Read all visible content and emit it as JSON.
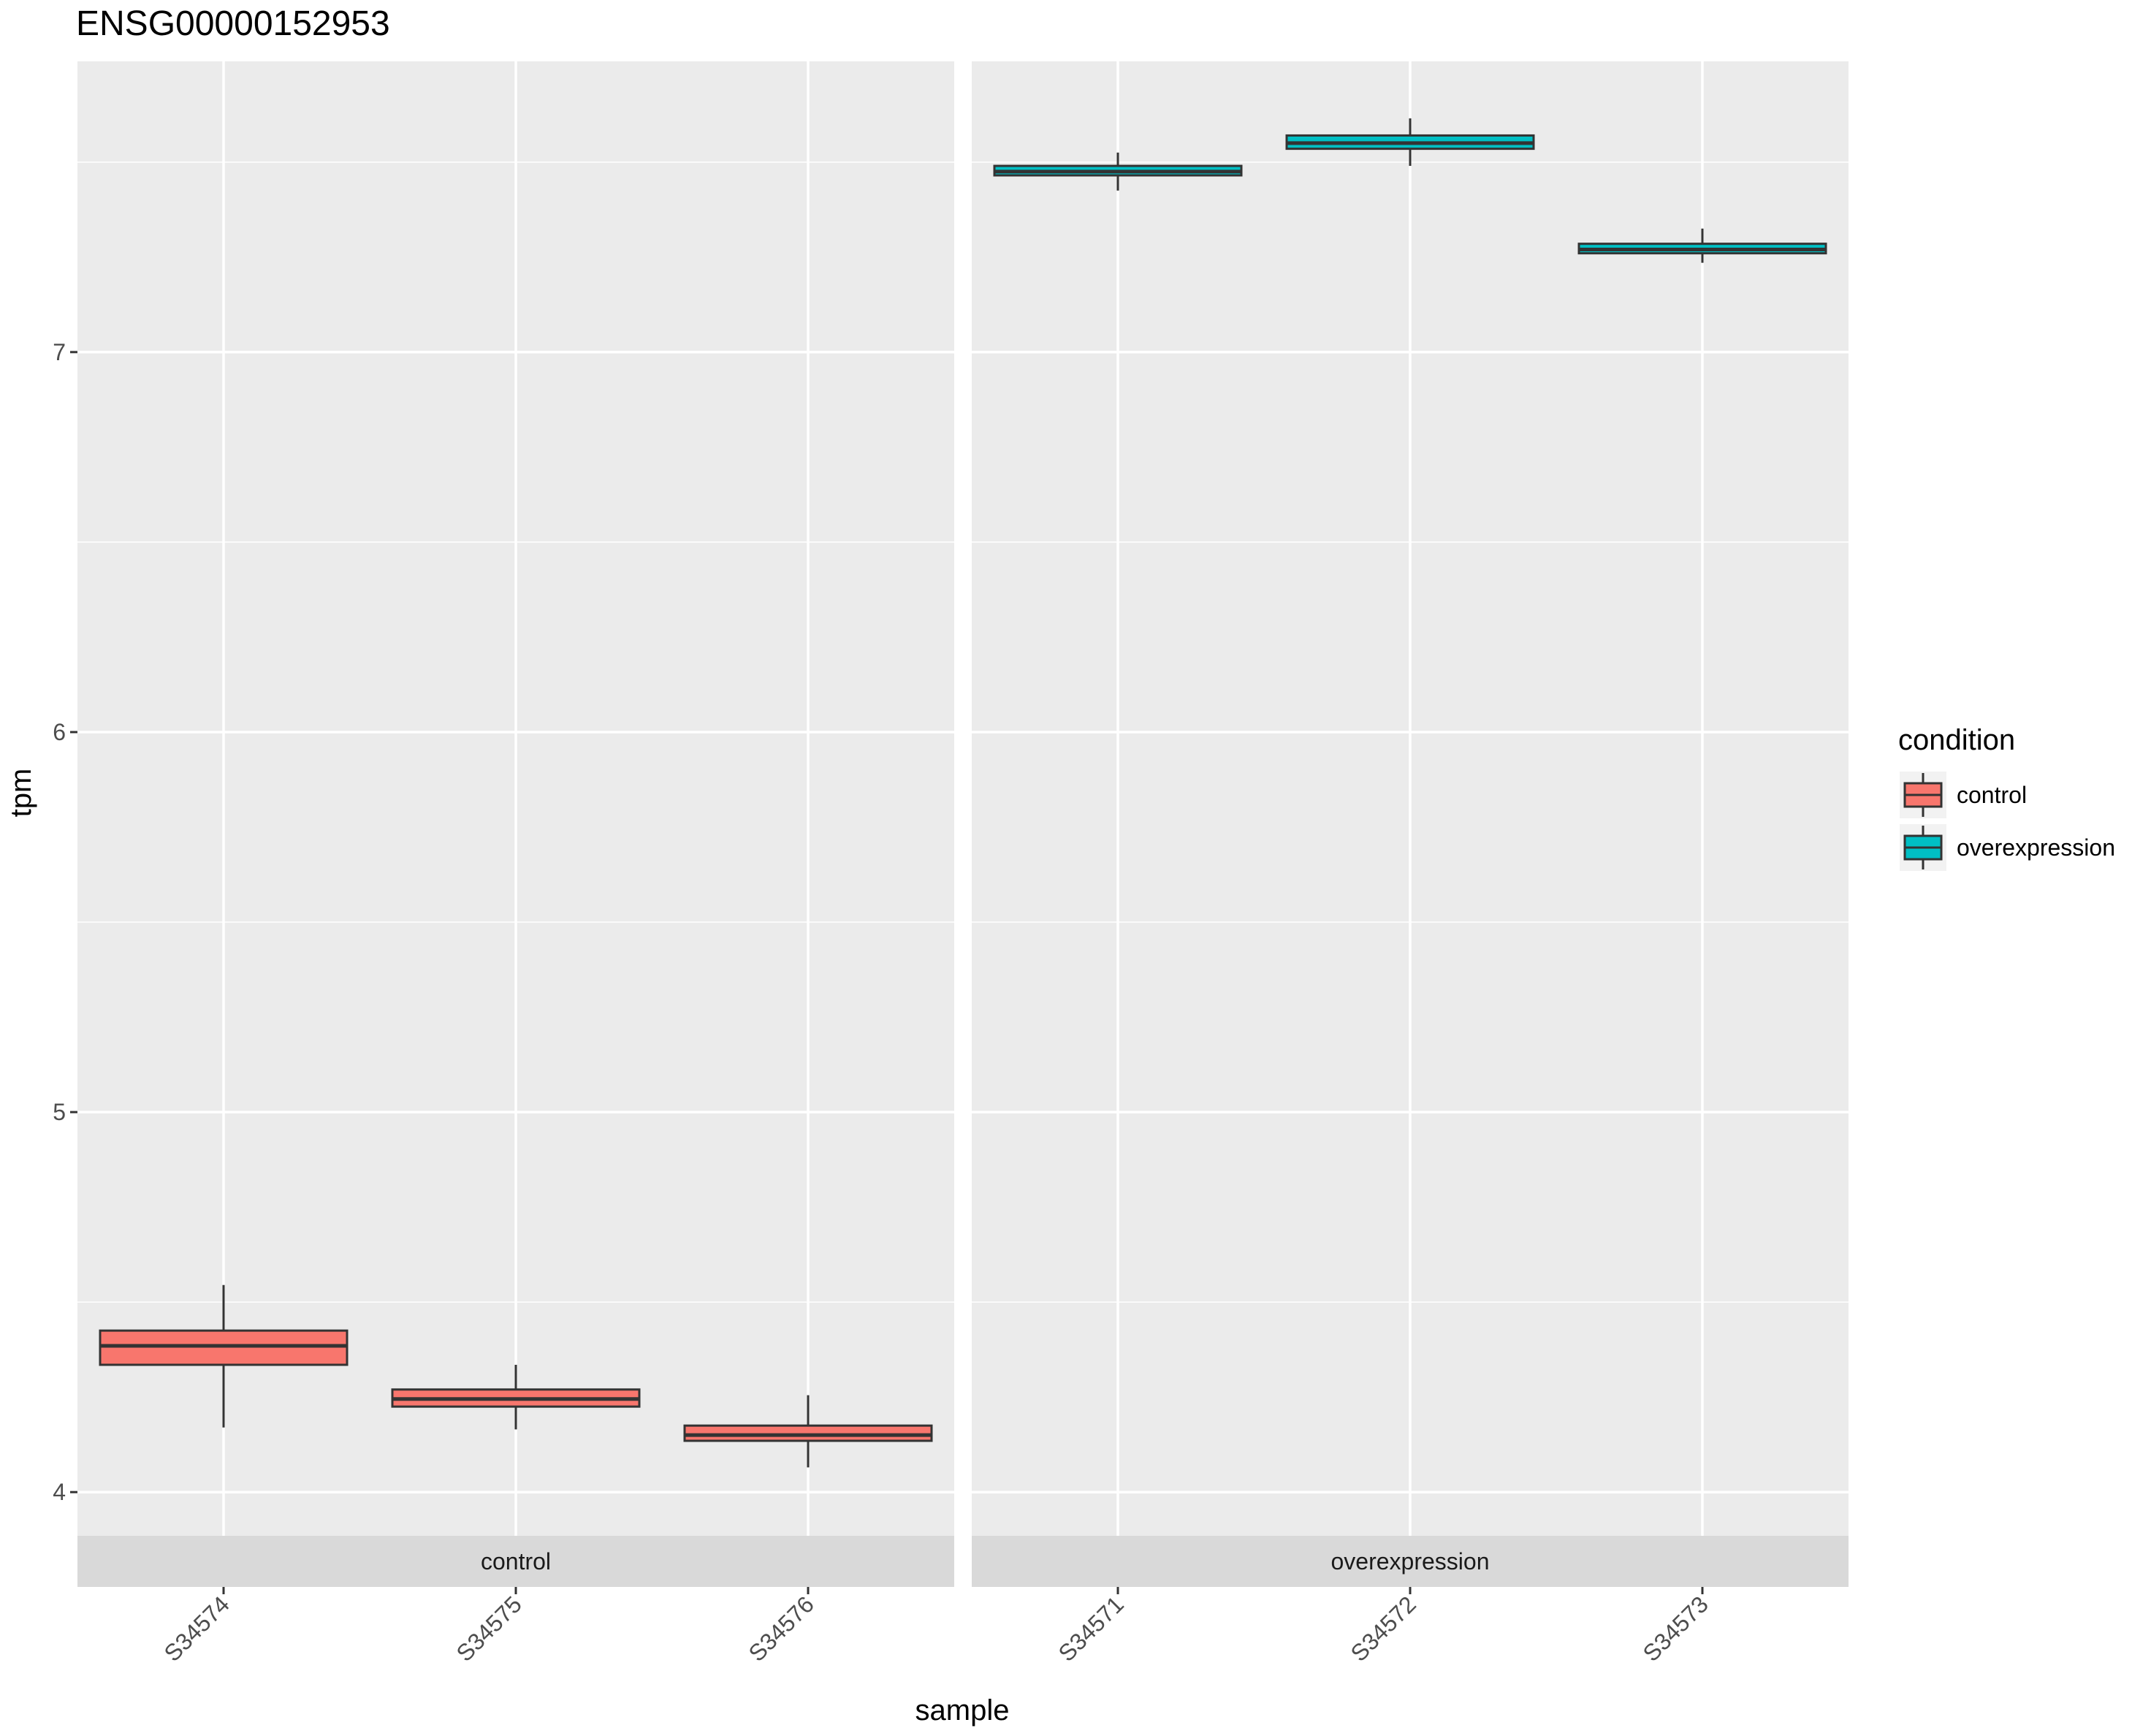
{
  "chart_data": {
    "type": "boxplot",
    "title": "ENSG00000152953",
    "xlabel": "sample",
    "ylabel": "tpm",
    "ylim": [
      3.885,
      7.765
    ],
    "y_ticks": [
      4,
      5,
      6,
      7
    ],
    "y_tick_labels": [
      "4",
      "5",
      "6",
      "7"
    ],
    "grid": true,
    "facet_by": "condition",
    "legend": {
      "title": "condition",
      "placement": "right",
      "entries": [
        {
          "label": "control",
          "color": "#F8766D"
        },
        {
          "label": "overexpression",
          "color": "#00BFC4"
        }
      ]
    },
    "panels": [
      {
        "strip_label": "control",
        "condition": "control",
        "categories": [
          "S34574",
          "S34575",
          "S34576"
        ],
        "boxes": [
          {
            "sample": "S34574",
            "whisker_low": 4.17,
            "q1": 4.335,
            "median": 4.385,
            "q3": 4.425,
            "whisker_high": 4.545
          },
          {
            "sample": "S34575",
            "whisker_low": 4.165,
            "q1": 4.225,
            "median": 4.245,
            "q3": 4.27,
            "whisker_high": 4.335
          },
          {
            "sample": "S34576",
            "whisker_low": 4.065,
            "q1": 4.135,
            "median": 4.15,
            "q3": 4.175,
            "whisker_high": 4.255
          }
        ]
      },
      {
        "strip_label": "overexpression",
        "condition": "overexpression",
        "categories": [
          "S34571",
          "S34572",
          "S34573"
        ],
        "boxes": [
          {
            "sample": "S34571",
            "whisker_low": 7.425,
            "q1": 7.465,
            "median": 7.475,
            "q3": 7.49,
            "whisker_high": 7.525
          },
          {
            "sample": "S34572",
            "whisker_low": 7.49,
            "q1": 7.535,
            "median": 7.55,
            "q3": 7.57,
            "whisker_high": 7.615
          },
          {
            "sample": "S34573",
            "whisker_low": 7.235,
            "q1": 7.26,
            "median": 7.27,
            "q3": 7.285,
            "whisker_high": 7.325
          }
        ]
      }
    ]
  }
}
